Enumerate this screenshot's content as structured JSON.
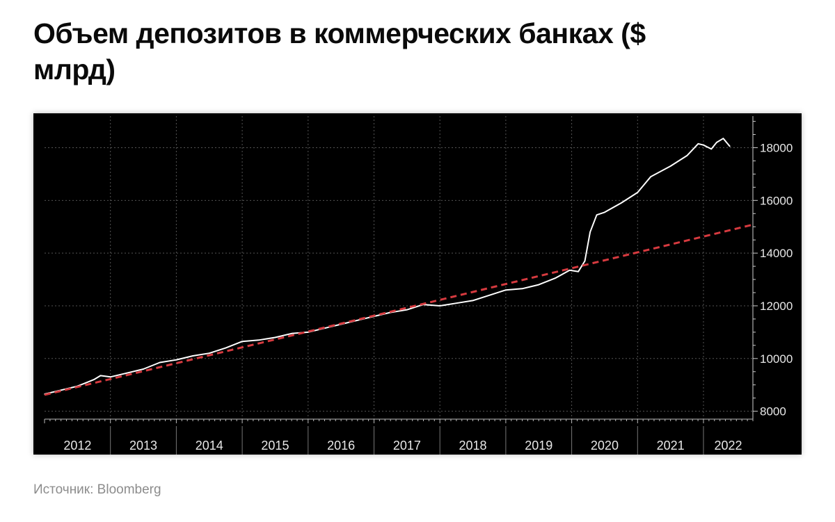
{
  "title": "Объем депозитов в коммерческих банках ($ млрд)",
  "source": "Источник: Bloomberg",
  "colors": {
    "background": "#000000",
    "deposits_line": "#ffffff",
    "trend_line": "#d63a3f",
    "grid": "#555555"
  },
  "chart_data": {
    "type": "line",
    "title": "Объем депозитов в коммерческих банках ($ млрд)",
    "xlabel": "",
    "ylabel": "",
    "y_axis_position": "right",
    "grid": true,
    "xlim": [
      2012.0,
      2022.75
    ],
    "ylim": [
      7700,
      19200
    ],
    "y_ticks": [
      8000,
      10000,
      12000,
      14000,
      16000,
      18000
    ],
    "x_tick_labels": [
      "2012",
      "2013",
      "2014",
      "2015",
      "2016",
      "2017",
      "2018",
      "2019",
      "2020",
      "2021",
      "2022"
    ],
    "series": [
      {
        "style": "solid",
        "x": [
          2012.0,
          2012.25,
          2012.5,
          2012.75,
          2012.85,
          2013.0,
          2013.25,
          2013.5,
          2013.75,
          2014.0,
          2014.25,
          2014.5,
          2014.75,
          2015.0,
          2015.25,
          2015.5,
          2015.75,
          2016.0,
          2016.25,
          2016.5,
          2016.75,
          2017.0,
          2017.25,
          2017.5,
          2017.75,
          2018.0,
          2018.25,
          2018.5,
          2018.75,
          2019.0,
          2019.25,
          2019.5,
          2019.75,
          2019.97,
          2020.1,
          2020.2,
          2020.28,
          2020.38,
          2020.5,
          2020.75,
          2021.0,
          2021.2,
          2021.5,
          2021.75,
          2021.92,
          2022.0,
          2022.12,
          2022.2,
          2022.3,
          2022.4
        ],
        "values": [
          8650,
          8800,
          8950,
          9200,
          9350,
          9300,
          9450,
          9600,
          9850,
          9950,
          10100,
          10200,
          10400,
          10650,
          10700,
          10800,
          10950,
          11000,
          11150,
          11300,
          11450,
          11600,
          11750,
          11850,
          12050,
          12000,
          12100,
          12200,
          12400,
          12600,
          12650,
          12800,
          13050,
          13350,
          13300,
          13700,
          14800,
          15450,
          15550,
          15900,
          16300,
          16900,
          17300,
          17700,
          18150,
          18100,
          17950,
          18200,
          18350,
          18050
        ]
      },
      {
        "style": "dashed",
        "x": [
          2012.0,
          2022.75
        ],
        "values": [
          8620,
          15080
        ]
      }
    ]
  }
}
